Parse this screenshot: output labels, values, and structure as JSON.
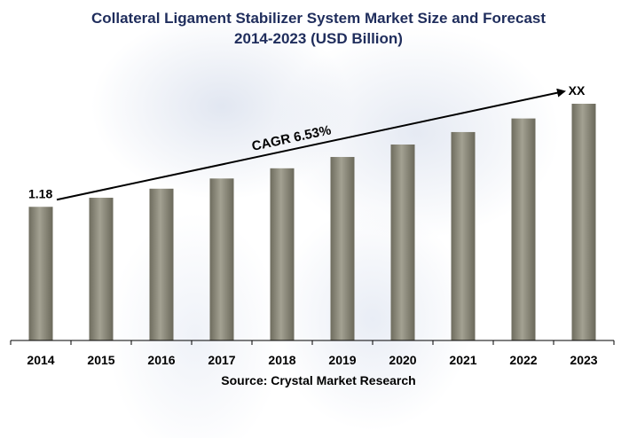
{
  "chart_data": {
    "type": "bar",
    "title": "Collateral Ligament Stabilizer System Market  Size and Forecast",
    "subtitle": "2014-2023 (USD Billion)",
    "categories": [
      "2014",
      "2015",
      "2016",
      "2017",
      "2018",
      "2019",
      "2020",
      "2021",
      "2022",
      "2023"
    ],
    "values": [
      1.18,
      1.26,
      1.34,
      1.43,
      1.52,
      1.62,
      1.73,
      1.84,
      1.96,
      2.09
    ],
    "ylim": [
      0,
      2.09
    ],
    "data_labels": {
      "first": "1.18",
      "last": "XX"
    },
    "annotation": "CAGR 6.53%",
    "grid": false,
    "source": "Source: Crystal Market Research",
    "colors": {
      "bar": "#8a8878",
      "title": "#1f2d5c",
      "arrow": "#000000"
    }
  }
}
